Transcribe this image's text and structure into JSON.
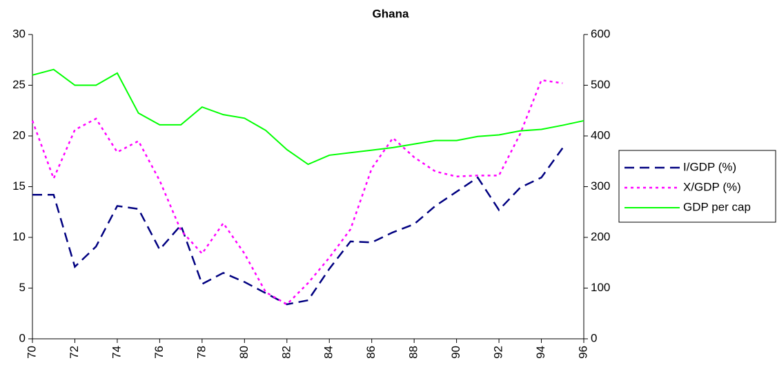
{
  "chart_data": {
    "type": "line",
    "title": "Ghana",
    "x": [
      70,
      71,
      72,
      73,
      74,
      75,
      76,
      77,
      78,
      79,
      80,
      81,
      82,
      83,
      84,
      85,
      86,
      87,
      88,
      89,
      90,
      91,
      92,
      93,
      94,
      95,
      96
    ],
    "xlim": [
      70,
      96
    ],
    "xticks": [
      70,
      72,
      74,
      76,
      78,
      80,
      82,
      84,
      86,
      88,
      90,
      92,
      94,
      96
    ],
    "ylim": [
      0,
      30
    ],
    "yticks": [
      0,
      5,
      10,
      15,
      20,
      25,
      30
    ],
    "y2lim": [
      0,
      600
    ],
    "y2ticks": [
      0,
      100,
      200,
      300,
      400,
      500,
      600
    ],
    "legend": "right",
    "series": [
      {
        "name": "I/GDP (%)",
        "color": "#000080",
        "dash": "dashed",
        "values": [
          14.2,
          14.2,
          7.1,
          9.1,
          13.1,
          12.8,
          8.8,
          11.2,
          5.4,
          6.5,
          5.6,
          4.5,
          3.4,
          3.8,
          6.9,
          9.6,
          9.5,
          10.5,
          11.3,
          13.1,
          14.5,
          15.9,
          12.7,
          14.9,
          15.9,
          18.8,
          null
        ]
      },
      {
        "name": "X/GDP (%)",
        "color": "#ff00ff",
        "dash": "dotted",
        "values": [
          21.5,
          15.8,
          20.6,
          21.7,
          18.4,
          19.5,
          15.6,
          10.7,
          8.4,
          11.4,
          8.4,
          4.6,
          3.4,
          5.5,
          8.0,
          10.8,
          16.8,
          19.8,
          17.9,
          16.5,
          16.0,
          16.1,
          16.1,
          20.2,
          25.5,
          25.2,
          null
        ]
      },
      {
        "name": "GDP per cap",
        "color": "#00ff00",
        "dash": "solid",
        "axis": "y2",
        "values": [
          520,
          531,
          500,
          500,
          524,
          445,
          422,
          422,
          457,
          442,
          435,
          411,
          373,
          344,
          362,
          367,
          372,
          377,
          384,
          391,
          391,
          399,
          402,
          410,
          413,
          421,
          430
        ]
      }
    ]
  }
}
